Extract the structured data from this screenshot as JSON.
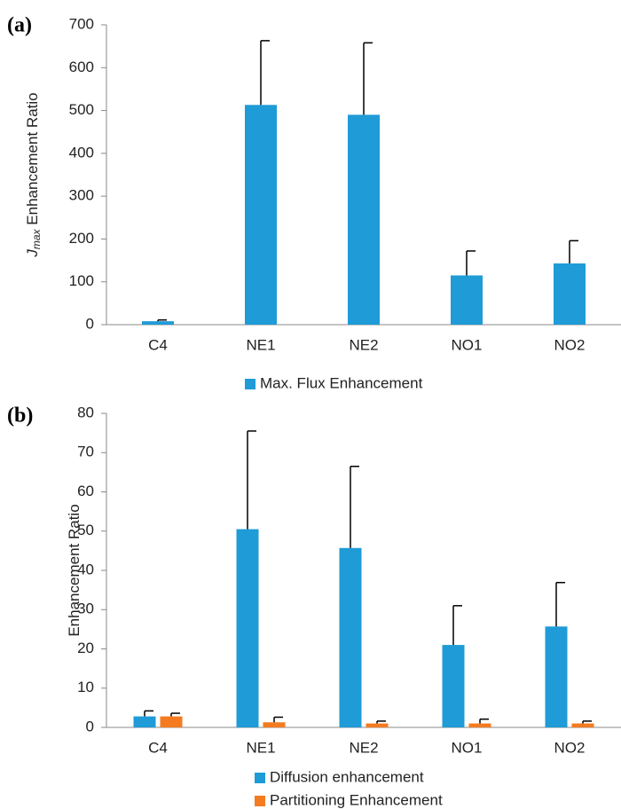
{
  "chart_data": [
    {
      "type": "bar",
      "label": "(a)",
      "ylabel": "J",
      "ylabel_subscript": "max",
      "ylabel_suffix": " Enhancement Ratio",
      "categories": [
        "C4",
        "NE1",
        "NE2",
        "NO1",
        "NO2"
      ],
      "series": [
        {
          "name": "Max. Flux Enhancement",
          "color": "#1f9bd7",
          "values": [
            8,
            513,
            490,
            115,
            143
          ],
          "errors": [
            3,
            150,
            168,
            57,
            53
          ]
        }
      ],
      "ylim": [
        0,
        700
      ],
      "yticks": [
        0,
        100,
        200,
        300,
        400,
        500,
        600,
        700
      ]
    },
    {
      "type": "bar",
      "label": "(b)",
      "ylabel": "Enhancement Ratio",
      "categories": [
        "C4",
        "NE1",
        "NE2",
        "NO1",
        "NO2"
      ],
      "series": [
        {
          "name": "Diffusion enhancement",
          "color": "#1f9bd7",
          "values": [
            2.8,
            50.5,
            45.7,
            21,
            25.7
          ],
          "errors": [
            1.4,
            25,
            20.8,
            10,
            11.2
          ]
        },
        {
          "name": "Partitioning Enhancement",
          "color": "#f47b20",
          "values": [
            2.8,
            1.3,
            1.0,
            1.0,
            1.0
          ],
          "errors": [
            0.8,
            1.3,
            0.6,
            1.1,
            0.6
          ]
        }
      ],
      "ylim": [
        0,
        80
      ],
      "yticks": [
        0,
        10,
        20,
        30,
        40,
        50,
        60,
        70,
        80
      ]
    }
  ]
}
